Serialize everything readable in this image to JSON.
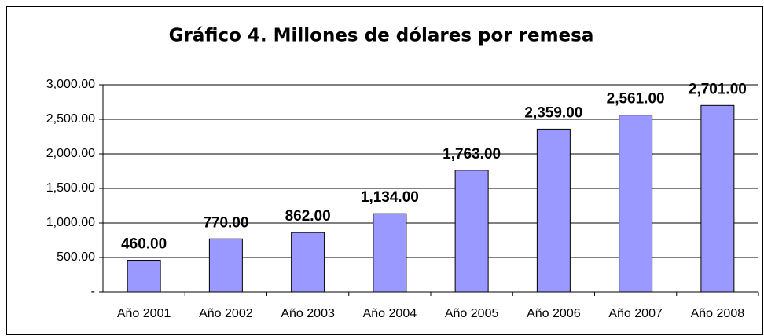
{
  "chart_data": {
    "type": "bar",
    "title": "Gráfico 4. Millones de dólares por remesa",
    "categories": [
      "Año 2001",
      "Año 2002",
      "Año 2003",
      "Año 2004",
      "Año 2005",
      "Año 2006",
      "Año 2007",
      "Año 2008"
    ],
    "values": [
      460,
      770,
      862,
      1134,
      1763,
      2359,
      2561,
      2701
    ],
    "value_labels": [
      "460.00",
      "770.00",
      "862.00",
      "1,134.00",
      "1,763.00",
      "2,359.00",
      "2,561.00",
      "2,701.00"
    ],
    "color": "#9999ff",
    "ylim": [
      0,
      3000
    ],
    "yticks": [
      {
        "value": 0,
        "label": "-"
      },
      {
        "value": 500,
        "label": "500.00"
      },
      {
        "value": 1000,
        "label": "1,000.00"
      },
      {
        "value": 1500,
        "label": "1,500.00"
      },
      {
        "value": 2000,
        "label": "2,000.00"
      },
      {
        "value": 2500,
        "label": "2,500.00"
      },
      {
        "value": 3000,
        "label": "3,000.00"
      }
    ],
    "grid": true
  }
}
